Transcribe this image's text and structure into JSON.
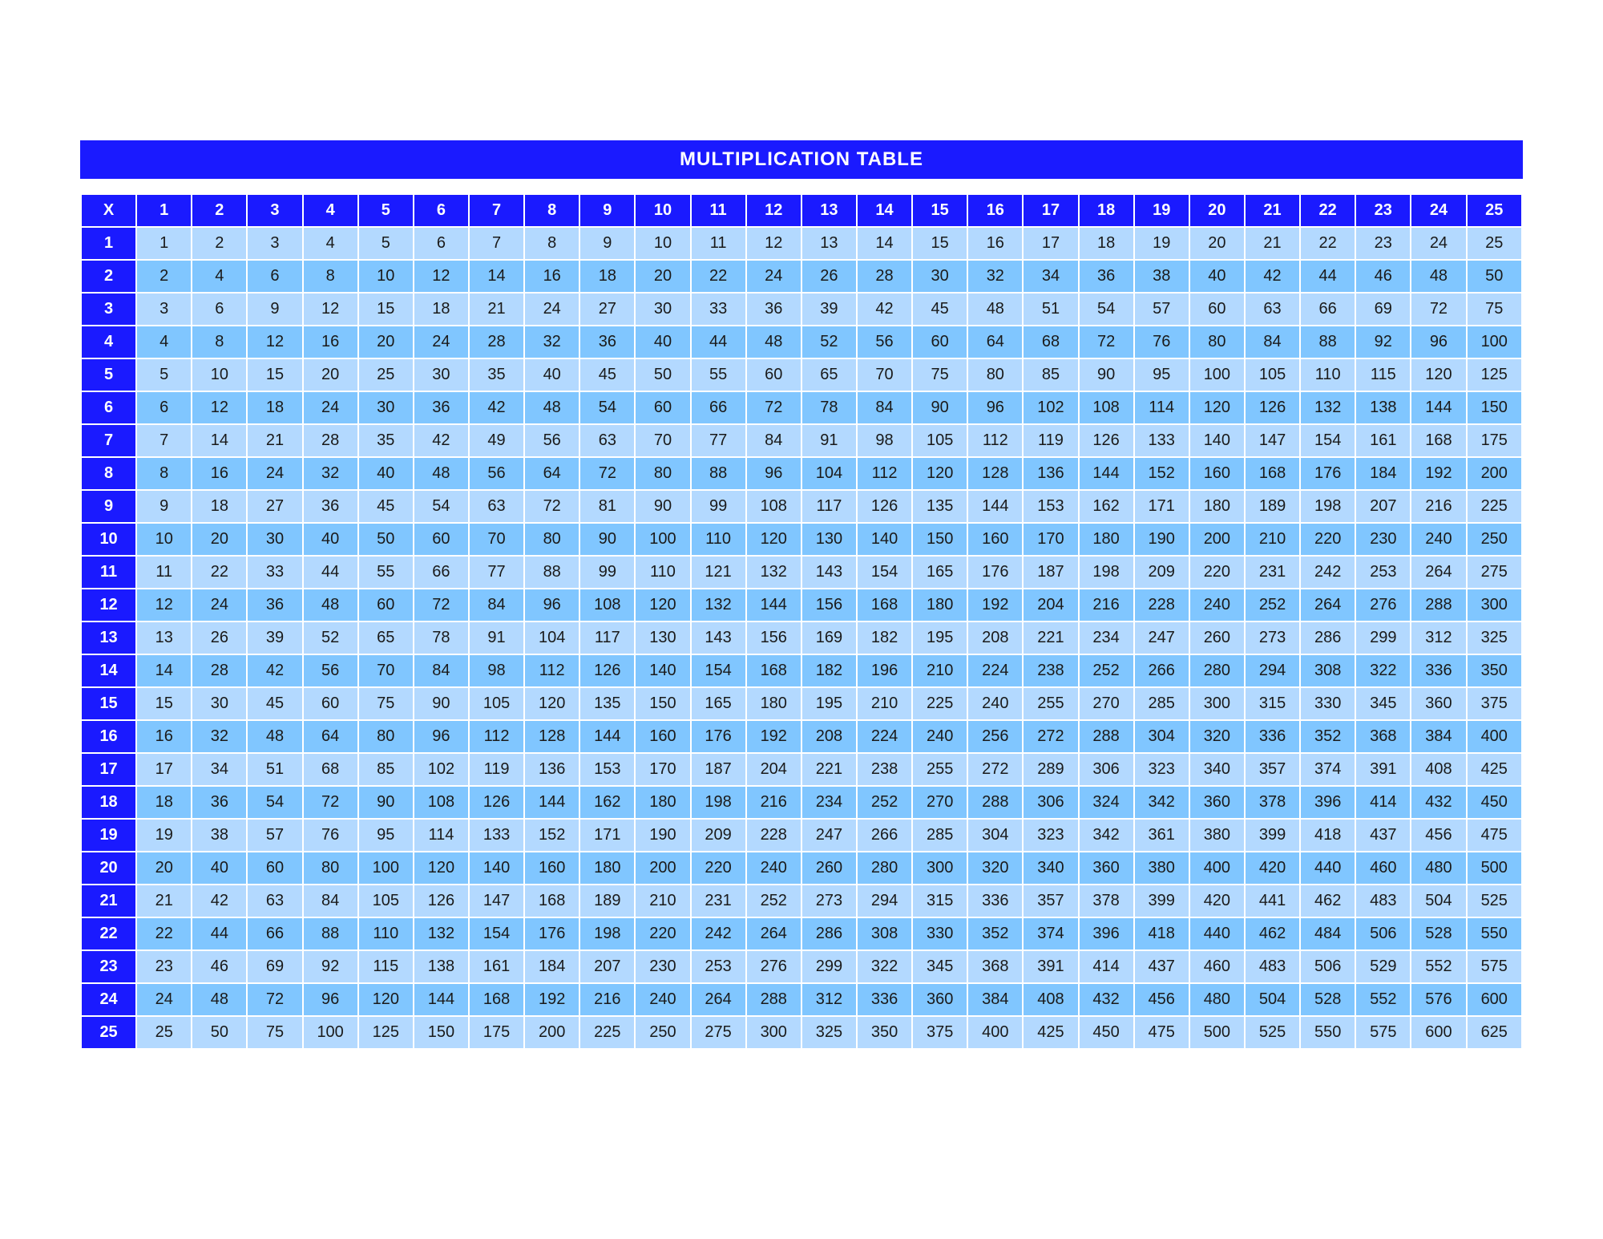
{
  "title": "MULTIPLICATION TABLE",
  "type": "table",
  "corner_label": "X",
  "size": 25,
  "columns": [
    1,
    2,
    3,
    4,
    5,
    6,
    7,
    8,
    9,
    10,
    11,
    12,
    13,
    14,
    15,
    16,
    17,
    18,
    19,
    20,
    21,
    22,
    23,
    24,
    25
  ],
  "row_headers": [
    1,
    2,
    3,
    4,
    5,
    6,
    7,
    8,
    9,
    10,
    11,
    12,
    13,
    14,
    15,
    16,
    17,
    18,
    19,
    20,
    21,
    22,
    23,
    24,
    25
  ],
  "rows": [
    [
      1,
      2,
      3,
      4,
      5,
      6,
      7,
      8,
      9,
      10,
      11,
      12,
      13,
      14,
      15,
      16,
      17,
      18,
      19,
      20,
      21,
      22,
      23,
      24,
      25
    ],
    [
      2,
      4,
      6,
      8,
      10,
      12,
      14,
      16,
      18,
      20,
      22,
      24,
      26,
      28,
      30,
      32,
      34,
      36,
      38,
      40,
      42,
      44,
      46,
      48,
      50
    ],
    [
      3,
      6,
      9,
      12,
      15,
      18,
      21,
      24,
      27,
      30,
      33,
      36,
      39,
      42,
      45,
      48,
      51,
      54,
      57,
      60,
      63,
      66,
      69,
      72,
      75
    ],
    [
      4,
      8,
      12,
      16,
      20,
      24,
      28,
      32,
      36,
      40,
      44,
      48,
      52,
      56,
      60,
      64,
      68,
      72,
      76,
      80,
      84,
      88,
      92,
      96,
      100
    ],
    [
      5,
      10,
      15,
      20,
      25,
      30,
      35,
      40,
      45,
      50,
      55,
      60,
      65,
      70,
      75,
      80,
      85,
      90,
      95,
      100,
      105,
      110,
      115,
      120,
      125
    ],
    [
      6,
      12,
      18,
      24,
      30,
      36,
      42,
      48,
      54,
      60,
      66,
      72,
      78,
      84,
      90,
      96,
      102,
      108,
      114,
      120,
      126,
      132,
      138,
      144,
      150
    ],
    [
      7,
      14,
      21,
      28,
      35,
      42,
      49,
      56,
      63,
      70,
      77,
      84,
      91,
      98,
      105,
      112,
      119,
      126,
      133,
      140,
      147,
      154,
      161,
      168,
      175
    ],
    [
      8,
      16,
      24,
      32,
      40,
      48,
      56,
      64,
      72,
      80,
      88,
      96,
      104,
      112,
      120,
      128,
      136,
      144,
      152,
      160,
      168,
      176,
      184,
      192,
      200
    ],
    [
      9,
      18,
      27,
      36,
      45,
      54,
      63,
      72,
      81,
      90,
      99,
      108,
      117,
      126,
      135,
      144,
      153,
      162,
      171,
      180,
      189,
      198,
      207,
      216,
      225
    ],
    [
      10,
      20,
      30,
      40,
      50,
      60,
      70,
      80,
      90,
      100,
      110,
      120,
      130,
      140,
      150,
      160,
      170,
      180,
      190,
      200,
      210,
      220,
      230,
      240,
      250
    ],
    [
      11,
      22,
      33,
      44,
      55,
      66,
      77,
      88,
      99,
      110,
      121,
      132,
      143,
      154,
      165,
      176,
      187,
      198,
      209,
      220,
      231,
      242,
      253,
      264,
      275
    ],
    [
      12,
      24,
      36,
      48,
      60,
      72,
      84,
      96,
      108,
      120,
      132,
      144,
      156,
      168,
      180,
      192,
      204,
      216,
      228,
      240,
      252,
      264,
      276,
      288,
      300
    ],
    [
      13,
      26,
      39,
      52,
      65,
      78,
      91,
      104,
      117,
      130,
      143,
      156,
      169,
      182,
      195,
      208,
      221,
      234,
      247,
      260,
      273,
      286,
      299,
      312,
      325
    ],
    [
      14,
      28,
      42,
      56,
      70,
      84,
      98,
      112,
      126,
      140,
      154,
      168,
      182,
      196,
      210,
      224,
      238,
      252,
      266,
      280,
      294,
      308,
      322,
      336,
      350
    ],
    [
      15,
      30,
      45,
      60,
      75,
      90,
      105,
      120,
      135,
      150,
      165,
      180,
      195,
      210,
      225,
      240,
      255,
      270,
      285,
      300,
      315,
      330,
      345,
      360,
      375
    ],
    [
      16,
      32,
      48,
      64,
      80,
      96,
      112,
      128,
      144,
      160,
      176,
      192,
      208,
      224,
      240,
      256,
      272,
      288,
      304,
      320,
      336,
      352,
      368,
      384,
      400
    ],
    [
      17,
      34,
      51,
      68,
      85,
      102,
      119,
      136,
      153,
      170,
      187,
      204,
      221,
      238,
      255,
      272,
      289,
      306,
      323,
      340,
      357,
      374,
      391,
      408,
      425
    ],
    [
      18,
      36,
      54,
      72,
      90,
      108,
      126,
      144,
      162,
      180,
      198,
      216,
      234,
      252,
      270,
      288,
      306,
      324,
      342,
      360,
      378,
      396,
      414,
      432,
      450
    ],
    [
      19,
      38,
      57,
      76,
      95,
      114,
      133,
      152,
      171,
      190,
      209,
      228,
      247,
      266,
      285,
      304,
      323,
      342,
      361,
      380,
      399,
      418,
      437,
      456,
      475
    ],
    [
      20,
      40,
      60,
      80,
      100,
      120,
      140,
      160,
      180,
      200,
      220,
      240,
      260,
      280,
      300,
      320,
      340,
      360,
      380,
      400,
      420,
      440,
      460,
      480,
      500
    ],
    [
      21,
      42,
      63,
      84,
      105,
      126,
      147,
      168,
      189,
      210,
      231,
      252,
      273,
      294,
      315,
      336,
      357,
      378,
      399,
      420,
      441,
      462,
      483,
      504,
      525
    ],
    [
      22,
      44,
      66,
      88,
      110,
      132,
      154,
      176,
      198,
      220,
      242,
      264,
      286,
      308,
      330,
      352,
      374,
      396,
      418,
      440,
      462,
      484,
      506,
      528,
      550
    ],
    [
      23,
      46,
      69,
      92,
      115,
      138,
      161,
      184,
      207,
      230,
      253,
      276,
      299,
      322,
      345,
      368,
      391,
      414,
      437,
      460,
      483,
      506,
      529,
      552,
      575
    ],
    [
      24,
      48,
      72,
      96,
      120,
      144,
      168,
      192,
      216,
      240,
      264,
      288,
      312,
      336,
      360,
      384,
      408,
      432,
      456,
      480,
      504,
      528,
      552,
      576,
      600
    ],
    [
      25,
      50,
      75,
      100,
      125,
      150,
      175,
      200,
      225,
      250,
      275,
      300,
      325,
      350,
      375,
      400,
      425,
      450,
      475,
      500,
      525,
      550,
      575,
      600,
      625
    ]
  ],
  "styling": {
    "title_bg": "#1a1aff",
    "title_color": "#ffffff",
    "title_fontsize": 24,
    "header_bg": "#1a1aff",
    "header_color": "#ffffff",
    "cell_bg_odd": "#b3d9ff",
    "cell_bg_even": "#80c6ff",
    "cell_color": "#1a1a1a",
    "border_color": "#ffffff",
    "border_width": 2,
    "cell_fontsize": 20,
    "page_bg": "#ffffff"
  }
}
